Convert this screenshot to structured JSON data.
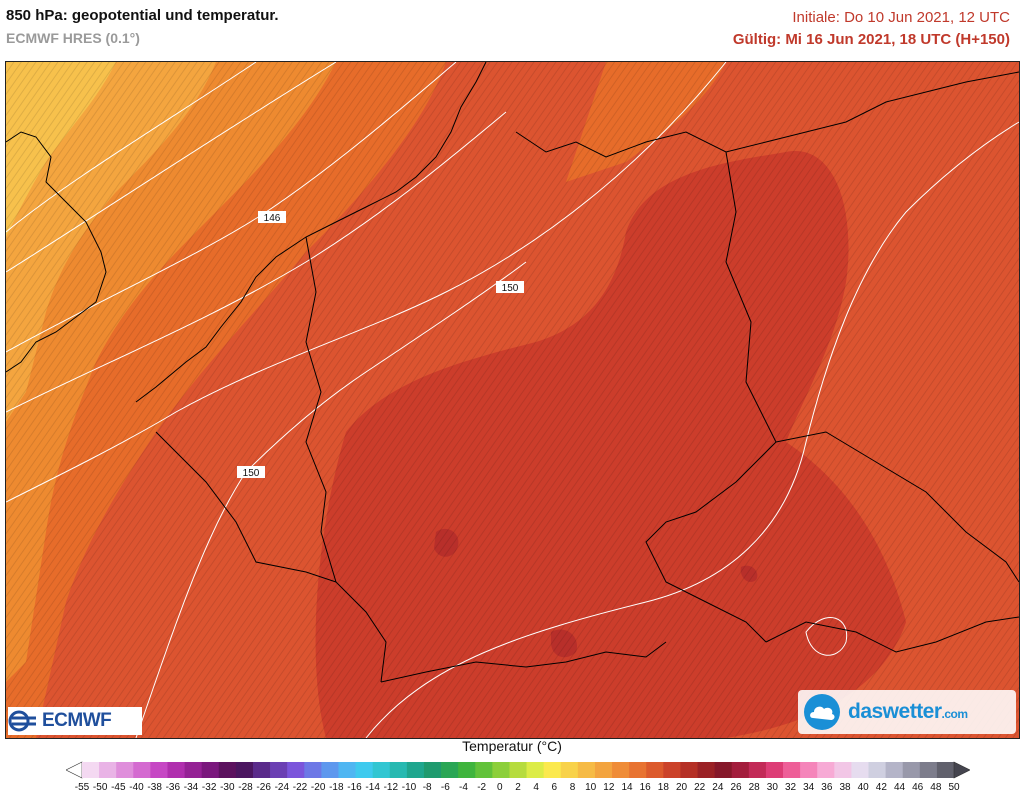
{
  "header": {
    "title": "850 hPa: geopotential und temperatur.",
    "model": "ECMWF HRES (0.1°)",
    "initial": "Initiale: Do 10 Jun 2021, 12 UTC",
    "valid": "Gültig: Mi 16 Jun 2021, 18 UTC (H+150)"
  },
  "map": {
    "contour_labels": [
      "146",
      "150",
      "150"
    ],
    "colors": {
      "t8": "#f7c14c",
      "t10": "#f4a53f",
      "t12": "#ee8a30",
      "t14": "#e76c2a",
      "t16": "#dc5430",
      "t18": "#cc3d2b",
      "t20": "#b82f2a",
      "contour": "#ffffff",
      "border": "#000000"
    }
  },
  "logos": {
    "left": "ECMWF",
    "right": "daswetter",
    "right_suffix": ".com",
    "left_icon": "ecmwf-logo-icon",
    "right_icon": "daswetter-cloud-icon"
  },
  "colorbar": {
    "title": "Temperatur (°C)",
    "ticks": [
      "-55",
      "-50",
      "-45",
      "-40",
      "-38",
      "-36",
      "-34",
      "-32",
      "-30",
      "-28",
      "-26",
      "-24",
      "-22",
      "-20",
      "-18",
      "-16",
      "-14",
      "-12",
      "-10",
      "-8",
      "-6",
      "-4",
      "-2",
      "0",
      "2",
      "4",
      "6",
      "8",
      "10",
      "12",
      "14",
      "16",
      "18",
      "20",
      "22",
      "24",
      "26",
      "28",
      "30",
      "32",
      "34",
      "36",
      "38",
      "40",
      "42",
      "44",
      "46",
      "48",
      "50"
    ],
    "colors": [
      "#ffffff",
      "#f4d9f2",
      "#e9b3e6",
      "#df8edb",
      "#d46ad0",
      "#c647c4",
      "#b02fae",
      "#952295",
      "#7a187d",
      "#5c125f",
      "#4b1660",
      "#5a2a8a",
      "#6b3fb3",
      "#7b55db",
      "#6d78e6",
      "#5e98ee",
      "#4fb6f2",
      "#3fcaee",
      "#32c6d2",
      "#27b9b1",
      "#1fa68e",
      "#1f9a6e",
      "#2aa655",
      "#3fb43d",
      "#62c23a",
      "#8ccf3a",
      "#b6dc3e",
      "#dcec47",
      "#fbe94e",
      "#f8d24a",
      "#f6bb45",
      "#f3a43f",
      "#ef8c37",
      "#e87331",
      "#dc5a2c",
      "#cb4229",
      "#b53026",
      "#9b2226",
      "#86182a",
      "#a31d3c",
      "#c22a57",
      "#dd3d76",
      "#ee5f98",
      "#f585ba",
      "#f7aad5",
      "#f2c6e6",
      "#e6dcef",
      "#cfcfe0",
      "#b4b4c8",
      "#9898aa",
      "#7c7c8b",
      "#60606c",
      "#44444e"
    ]
  }
}
